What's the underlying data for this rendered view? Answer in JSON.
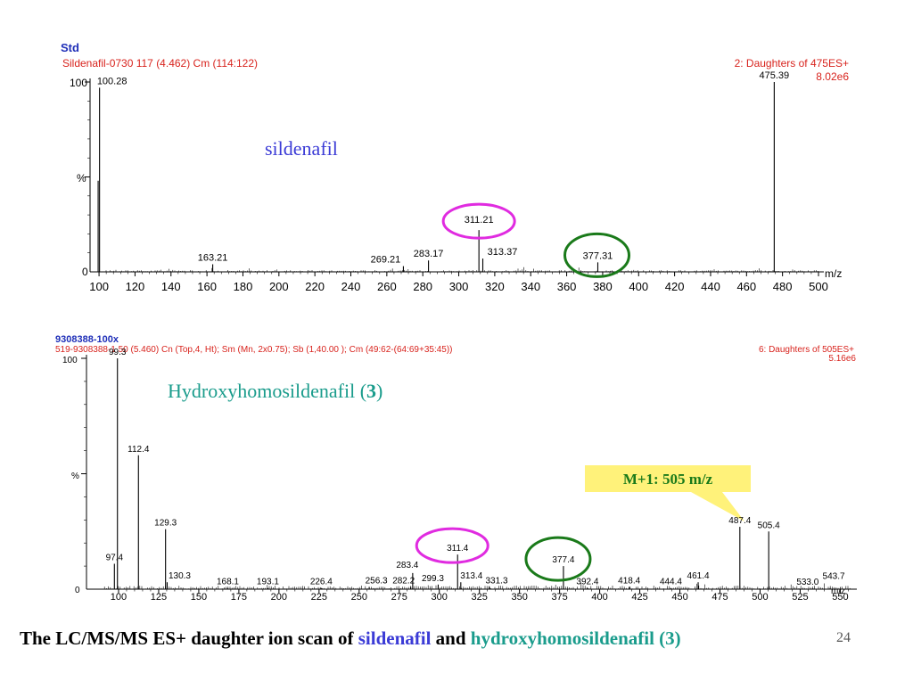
{
  "colors": {
    "header_blue": "#1f2fb8",
    "header_red": "#d8231d",
    "ion_blue": "#3b3bd6",
    "teal": "#1a9c8c",
    "magenta": "#e02be0",
    "green": "#1a7a1a",
    "callout_bg": "#fff27a",
    "axis": "#000000"
  },
  "chart_data": [
    {
      "type": "line",
      "label_top": "Std",
      "header_left": "Sildenafil-0730 117 (4.462) Cm (114:122)",
      "header_right": "2: Daughters of 475ES+",
      "intensity": "8.02e6",
      "overlay_label": "sildenafil",
      "ylabel": "%",
      "xlabel": "m/z",
      "xlim": [
        95,
        500
      ],
      "ylim": [
        0,
        100
      ],
      "yticks": [
        "0",
        "100"
      ],
      "xticks": [
        100,
        120,
        140,
        160,
        180,
        200,
        220,
        240,
        260,
        280,
        300,
        320,
        340,
        360,
        380,
        400,
        420,
        440,
        460,
        480,
        500
      ],
      "peaks": [
        {
          "mz": 100.28,
          "rel": 97,
          "label": "100.28"
        },
        {
          "mz": 99.5,
          "rel": 48,
          "label": ""
        },
        {
          "mz": 163.21,
          "rel": 4,
          "label": "163.21"
        },
        {
          "mz": 269.21,
          "rel": 3,
          "label": "269.21"
        },
        {
          "mz": 283.17,
          "rel": 6,
          "label": "283.17"
        },
        {
          "mz": 311.21,
          "rel": 22,
          "label": "311.21"
        },
        {
          "mz": 313.37,
          "rel": 7,
          "label": "313.37"
        },
        {
          "mz": 377.31,
          "rel": 5,
          "label": "377.31"
        },
        {
          "mz": 475.39,
          "rel": 100,
          "label": "475.39"
        }
      ],
      "highlight_magenta": 311.21,
      "highlight_green": 377.31
    },
    {
      "type": "line",
      "label_top": "9308388-100x",
      "header_left": "519-9308388-1  50 (5.460) Cn (Top,4, Ht); Sm (Mn, 2x0.75); Sb (1,40.00 ); Cm (49:62-(64:69+35:45))",
      "header_right": "6: Daughters of 505ES+",
      "intensity": "5.16e6",
      "overlay_label": "Hydroxyhomosildenafil (",
      "overlay_label_num": "3",
      "overlay_label_end": ")",
      "callout": "M+1: 505 m/z",
      "ylabel": "%",
      "xlabel": "m/z",
      "xlim": [
        80,
        557
      ],
      "ylim": [
        0,
        100
      ],
      "yticks": [
        "0",
        "100"
      ],
      "xticks": [
        100,
        125,
        150,
        175,
        200,
        225,
        250,
        275,
        300,
        325,
        350,
        375,
        400,
        425,
        450,
        475,
        500,
        525,
        550
      ],
      "peaks": [
        {
          "mz": 99.3,
          "rel": 100,
          "label": "99.3"
        },
        {
          "mz": 112.4,
          "rel": 58,
          "label": "112.4"
        },
        {
          "mz": 129.3,
          "rel": 26,
          "label": "129.3"
        },
        {
          "mz": 97.4,
          "rel": 11,
          "label": "97.4"
        },
        {
          "mz": 130.3,
          "rel": 3,
          "label": "130.3"
        },
        {
          "mz": 168.1,
          "rel": 0.5,
          "label": "168.1"
        },
        {
          "mz": 193.1,
          "rel": 0.5,
          "label": "193.1"
        },
        {
          "mz": 226.4,
          "rel": 0.5,
          "label": "226.4"
        },
        {
          "mz": 256.3,
          "rel": 1,
          "label": "256.3"
        },
        {
          "mz": 282.2,
          "rel": 1,
          "label": "282.2"
        },
        {
          "mz": 283.4,
          "rel": 7,
          "label": "283.4"
        },
        {
          "mz": 299.3,
          "rel": 2,
          "label": "299.3"
        },
        {
          "mz": 311.4,
          "rel": 15,
          "label": "311.4"
        },
        {
          "mz": 313.4,
          "rel": 3,
          "label": "313.4"
        },
        {
          "mz": 331.3,
          "rel": 1,
          "label": "331.3"
        },
        {
          "mz": 377.4,
          "rel": 10,
          "label": "377.4"
        },
        {
          "mz": 392.4,
          "rel": 0.5,
          "label": "392.4"
        },
        {
          "mz": 418.4,
          "rel": 1,
          "label": "418.4"
        },
        {
          "mz": 444.4,
          "rel": 0.5,
          "label": "444.4"
        },
        {
          "mz": 461.4,
          "rel": 3,
          "label": "461.4"
        },
        {
          "mz": 487.4,
          "rel": 27,
          "label": "487.4"
        },
        {
          "mz": 505.4,
          "rel": 25,
          "label": "505.4"
        },
        {
          "mz": 533.0,
          "rel": 0.3,
          "label": "533.0"
        },
        {
          "mz": 543.7,
          "rel": 0.5,
          "label": "543.7"
        }
      ],
      "highlight_magenta": 311.4,
      "highlight_green": 377.4
    }
  ],
  "caption": {
    "part1": "The LC/MS/MS ES+ daughter ion scan of ",
    "part2": "sildenafil",
    "part3": " and ",
    "part4": "hydroxyhomosildenafil (3)"
  },
  "page_number": "24"
}
